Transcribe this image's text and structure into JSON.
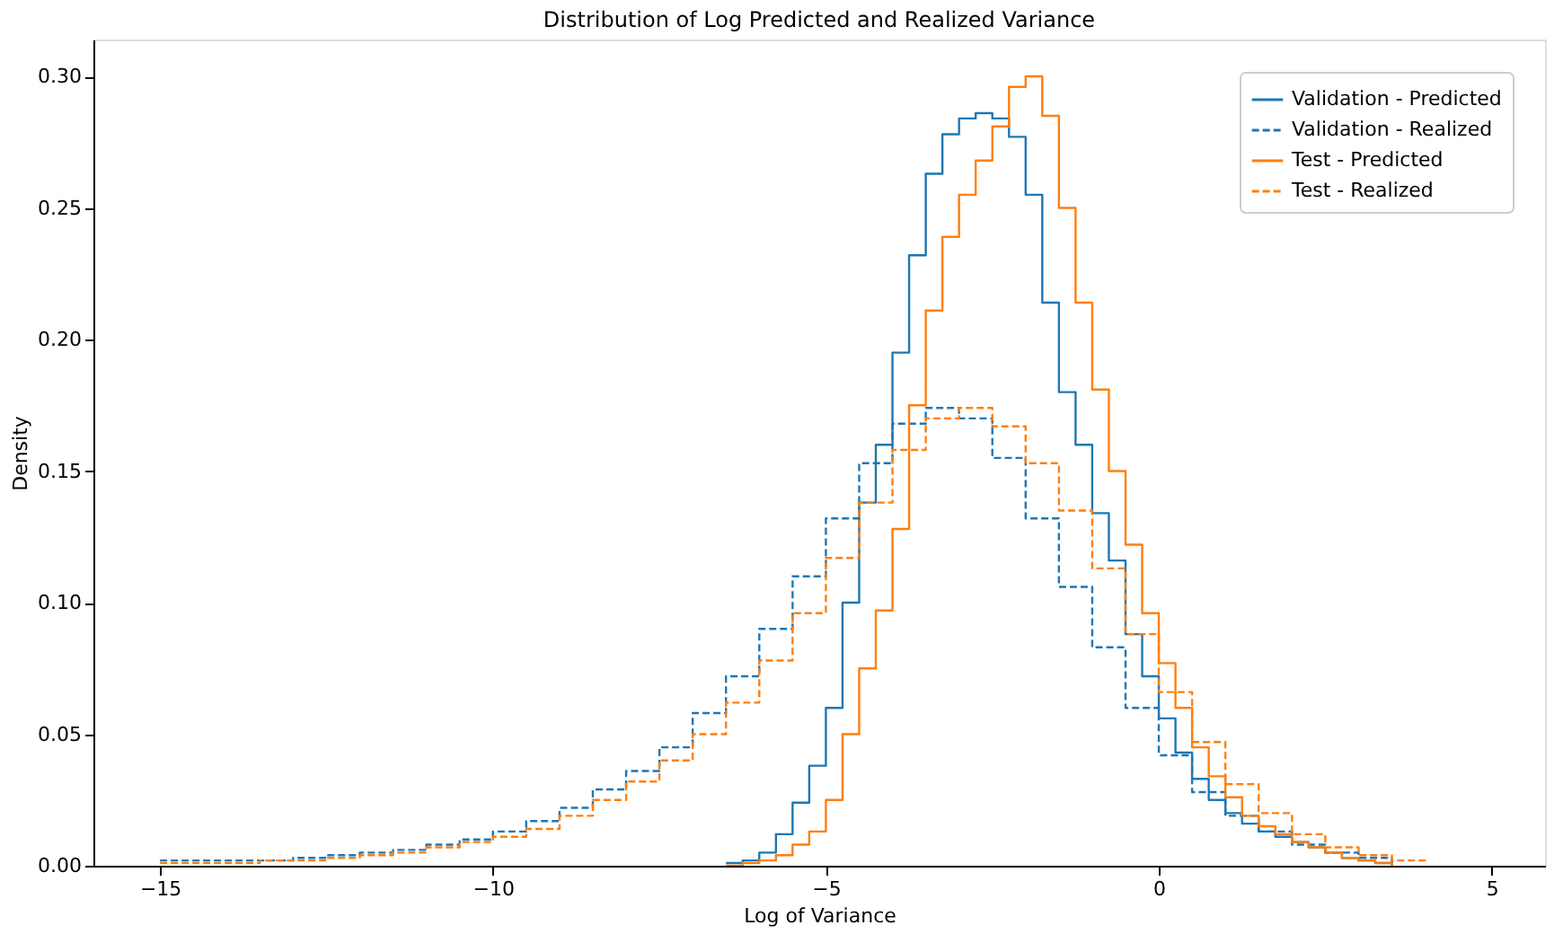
{
  "chart_data": {
    "type": "step",
    "title": "Distribution of Log Predicted and Realized Variance",
    "xlabel": "Log of Variance",
    "ylabel": "Density",
    "xlim": [
      -16,
      5.8
    ],
    "ylim": [
      0,
      0.314
    ],
    "xticks": [
      -15,
      -10,
      -5,
      0,
      5
    ],
    "yticks": [
      {
        "value": 0,
        "label": "0.00"
      },
      {
        "value": 0.05,
        "label": "0.05"
      },
      {
        "value": 0.1,
        "label": "0.10"
      },
      {
        "value": 0.15,
        "label": "0.15"
      },
      {
        "value": 0.2,
        "label": "0.20"
      },
      {
        "value": 0.25,
        "label": "0.25"
      },
      {
        "value": 0.3,
        "label": "0.30"
      }
    ],
    "grid": false,
    "legend": "top right",
    "series": [
      {
        "name": "Validation - Predicted",
        "color": "#1f77b4",
        "line_style": "solid",
        "x": [
          -6.5,
          -6.25,
          -6.0,
          -5.75,
          -5.5,
          -5.25,
          -5.0,
          -4.75,
          -4.5,
          -4.25,
          -4.0,
          -3.75,
          -3.5,
          -3.25,
          -3.0,
          -2.75,
          -2.5,
          -2.25,
          -2.0,
          -1.75,
          -1.5,
          -1.25,
          -1.0,
          -0.75,
          -0.5,
          -0.25,
          0.0,
          0.25,
          0.5,
          0.75,
          1.0,
          1.25,
          1.5,
          1.75,
          2.0,
          2.25,
          2.5,
          2.75,
          3.0,
          3.25,
          3.5
        ],
        "values": [
          0.001,
          0.002,
          0.005,
          0.012,
          0.024,
          0.038,
          0.06,
          0.1,
          0.138,
          0.16,
          0.195,
          0.232,
          0.263,
          0.278,
          0.284,
          0.286,
          0.284,
          0.277,
          0.255,
          0.214,
          0.18,
          0.16,
          0.134,
          0.116,
          0.088,
          0.072,
          0.056,
          0.043,
          0.033,
          0.025,
          0.02,
          0.016,
          0.013,
          0.011,
          0.009,
          0.007,
          0.005,
          0.003,
          0.002,
          0.001,
          0.0
        ]
      },
      {
        "name": "Validation - Realized",
        "color": "#1f77b4",
        "line_style": "dashed",
        "x": [
          -15.0,
          -14.5,
          -14.0,
          -13.5,
          -13.0,
          -12.5,
          -12.0,
          -11.5,
          -11.0,
          -10.5,
          -10.0,
          -9.5,
          -9.0,
          -8.5,
          -8.0,
          -7.5,
          -7.0,
          -6.5,
          -6.0,
          -5.5,
          -5.0,
          -4.5,
          -4.0,
          -3.5,
          -3.0,
          -2.5,
          -2.0,
          -1.5,
          -1.0,
          -0.5,
          0.0,
          0.5,
          1.0,
          1.5,
          2.0,
          2.5,
          3.0,
          3.5
        ],
        "values": [
          0.002,
          0.002,
          0.002,
          0.002,
          0.003,
          0.004,
          0.005,
          0.006,
          0.008,
          0.01,
          0.013,
          0.017,
          0.022,
          0.029,
          0.036,
          0.045,
          0.058,
          0.072,
          0.09,
          0.11,
          0.132,
          0.153,
          0.168,
          0.174,
          0.17,
          0.155,
          0.132,
          0.106,
          0.083,
          0.06,
          0.042,
          0.028,
          0.019,
          0.013,
          0.008,
          0.005,
          0.003,
          0.001
        ]
      },
      {
        "name": "Test - Predicted",
        "color": "#ff7f0e",
        "line_style": "solid",
        "x": [
          -6.5,
          -6.25,
          -6.0,
          -5.75,
          -5.5,
          -5.25,
          -5.0,
          -4.75,
          -4.5,
          -4.25,
          -4.0,
          -3.75,
          -3.5,
          -3.25,
          -3.0,
          -2.75,
          -2.5,
          -2.25,
          -2.0,
          -1.75,
          -1.5,
          -1.25,
          -1.0,
          -0.75,
          -0.5,
          -0.25,
          0.0,
          0.25,
          0.5,
          0.75,
          1.0,
          1.25,
          1.5,
          1.75,
          2.0,
          2.25,
          2.5,
          2.75,
          3.0,
          3.25,
          3.5
        ],
        "values": [
          0.0,
          0.001,
          0.002,
          0.004,
          0.008,
          0.013,
          0.025,
          0.05,
          0.075,
          0.097,
          0.128,
          0.175,
          0.211,
          0.239,
          0.255,
          0.268,
          0.281,
          0.296,
          0.3,
          0.285,
          0.25,
          0.214,
          0.181,
          0.15,
          0.122,
          0.096,
          0.077,
          0.06,
          0.045,
          0.034,
          0.026,
          0.019,
          0.015,
          0.012,
          0.009,
          0.007,
          0.005,
          0.003,
          0.002,
          0.001,
          0.0
        ]
      },
      {
        "name": "Test - Realized",
        "color": "#ff7f0e",
        "line_style": "dashed",
        "x": [
          -15.0,
          -14.5,
          -14.0,
          -13.5,
          -13.0,
          -12.5,
          -12.0,
          -11.5,
          -11.0,
          -10.5,
          -10.0,
          -9.5,
          -9.0,
          -8.5,
          -8.0,
          -7.5,
          -7.0,
          -6.5,
          -6.0,
          -5.5,
          -5.0,
          -4.5,
          -4.0,
          -3.5,
          -3.0,
          -2.5,
          -2.0,
          -1.5,
          -1.0,
          -0.5,
          0.0,
          0.5,
          1.0,
          1.5,
          2.0,
          2.5,
          3.0,
          3.5,
          4.0
        ],
        "values": [
          0.001,
          0.001,
          0.001,
          0.002,
          0.002,
          0.003,
          0.004,
          0.005,
          0.007,
          0.009,
          0.011,
          0.014,
          0.019,
          0.025,
          0.032,
          0.04,
          0.05,
          0.062,
          0.078,
          0.096,
          0.117,
          0.138,
          0.158,
          0.17,
          0.174,
          0.167,
          0.153,
          0.135,
          0.113,
          0.088,
          0.066,
          0.047,
          0.031,
          0.02,
          0.012,
          0.007,
          0.004,
          0.002,
          0.001
        ]
      }
    ]
  }
}
